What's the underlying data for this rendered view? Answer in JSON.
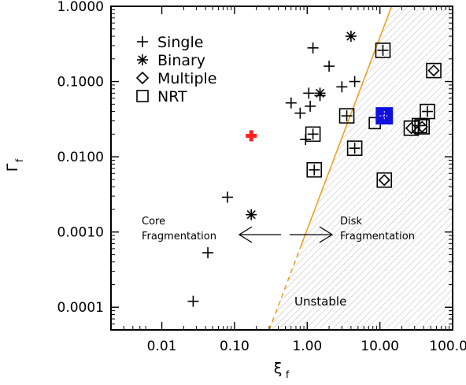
{
  "chart_data": {
    "type": "scatter",
    "xlabel": "ξ",
    "xlabel_sub": "f",
    "ylabel": "Γ",
    "ylabel_sub": "f",
    "x_scale": "log",
    "y_scale": "log",
    "xlim": [
      0.002,
      100
    ],
    "ylim": [
      5e-05,
      1.0
    ],
    "x_ticks": [
      0.01,
      0.1,
      1,
      10,
      100
    ],
    "x_tick_labels": [
      "0.01",
      "0.10",
      "1.00",
      "10.00",
      "100.00"
    ],
    "y_ticks": [
      0.0001,
      0.001,
      0.01,
      0.1,
      1
    ],
    "y_tick_labels": [
      "0.0001",
      "0.0010",
      "0.0100",
      "0.1000",
      "1.0000"
    ],
    "legend": {
      "placement": "top-left",
      "entries": [
        {
          "label": "Single",
          "marker": "plus"
        },
        {
          "label": "Binary",
          "marker": "asterisk"
        },
        {
          "label": "Multiple",
          "marker": "diamond"
        },
        {
          "label": "NRT",
          "marker": "square"
        }
      ]
    },
    "annotations": {
      "core_line1": "Core",
      "core_line2": "Fragmentation",
      "disk_line1": "Disk",
      "disk_line2": "Fragmentation",
      "unstable": "Unstable"
    },
    "boundary_line": {
      "color": "#f0a020",
      "points": [
        [
          0.3,
          5e-05
        ],
        [
          14.5,
          1.0
        ]
      ],
      "dashed_below_x": 0.8
    },
    "series": [
      {
        "name": "Single",
        "marker": "plus",
        "points": [
          [
            0.027,
            0.00012
          ],
          [
            0.043,
            0.00053
          ],
          [
            0.08,
            0.0029
          ],
          [
            0.6,
            0.052
          ],
          [
            0.8,
            0.038
          ],
          [
            0.95,
            0.017
          ],
          [
            1.05,
            0.07
          ],
          [
            1.1,
            0.047
          ],
          [
            1.2,
            0.28
          ],
          [
            1.5,
            0.065
          ],
          [
            2.0,
            0.16
          ],
          [
            3.0,
            0.085
          ],
          [
            4.5,
            0.1
          ]
        ]
      },
      {
        "name": "Binary",
        "marker": "asterisk",
        "points": [
          [
            0.17,
            0.0017
          ],
          [
            1.5,
            0.07
          ],
          [
            4.0,
            0.4
          ]
        ]
      },
      {
        "name": "NRT + Single",
        "marker": "square-plus",
        "points": [
          [
            1.2,
            0.02
          ],
          [
            1.25,
            0.0067
          ],
          [
            3.5,
            0.035
          ],
          [
            4.5,
            0.013
          ],
          [
            11.0,
            0.26
          ],
          [
            45.0,
            0.04
          ],
          [
            35.0,
            0.026
          ]
        ]
      },
      {
        "name": "NRT + Multiple",
        "marker": "square-diamond",
        "points": [
          [
            11.5,
            0.0049
          ],
          [
            27.0,
            0.024
          ],
          [
            55.0,
            0.14
          ],
          [
            38.0,
            0.025
          ]
        ]
      },
      {
        "name": "NRT",
        "marker": "square",
        "points": [
          [
            8.5,
            0.028
          ]
        ]
      },
      {
        "name": "highlight-red",
        "marker": "filled-plus",
        "color": "#ff2020",
        "points": [
          [
            0.17,
            0.019
          ]
        ]
      },
      {
        "name": "highlight-blue",
        "marker": "filled-square",
        "color": "#1010e0",
        "points": [
          [
            11.5,
            0.035
          ]
        ]
      }
    ]
  }
}
